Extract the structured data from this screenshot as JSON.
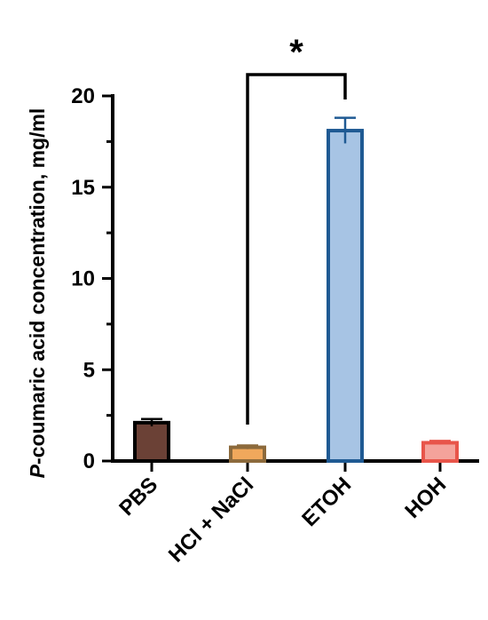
{
  "chart_data": {
    "type": "bar",
    "title": "",
    "xlabel": "",
    "ylabel_italic_prefix": "P",
    "ylabel_rest": "-coumaric acid concentration, mg/ml",
    "ylim": [
      0,
      20
    ],
    "yticks": [
      "0",
      "5",
      "10",
      "15",
      "20"
    ],
    "categories": [
      "PBS",
      "HCl + NaCl",
      "ETOH",
      "HOH"
    ],
    "values": [
      2.1,
      0.75,
      18.1,
      1.0
    ],
    "errors": [
      0.2,
      0.1,
      0.7,
      0.1
    ],
    "bar_fill_colors": [
      "#6b4136",
      "#f0a85c",
      "#a7c4e4",
      "#f4a39b"
    ],
    "bar_edge_colors": [
      "#000000",
      "#8c6a3c",
      "#1f5a93",
      "#e8554a"
    ],
    "significance": {
      "between": [
        "HCl + NaCl",
        "ETOH"
      ],
      "label": "*"
    },
    "grid": false,
    "legend": "none"
  }
}
